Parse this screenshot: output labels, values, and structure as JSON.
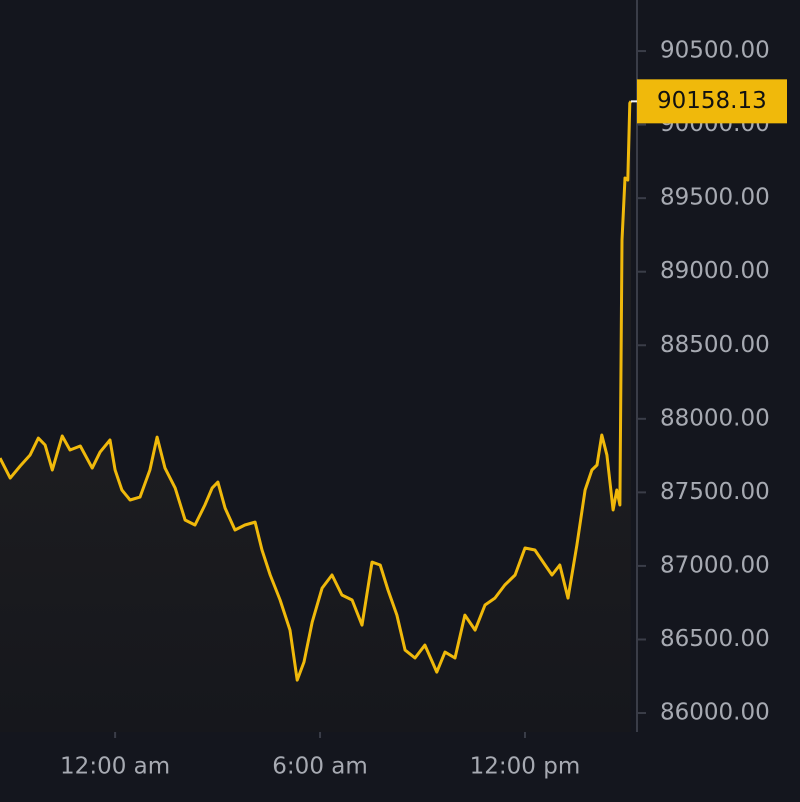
{
  "chart_data": {
    "type": "line",
    "series": [
      {
        "color": "#f0b90b",
        "x": [
          -3.37,
          -3.07,
          -2.78,
          -2.49,
          -2.25,
          -2.05,
          -1.84,
          -1.55,
          -1.32,
          -1.02,
          -0.67,
          -0.44,
          -0.15,
          0,
          0.2,
          0.44,
          0.73,
          1.02,
          1.23,
          1.46,
          1.76,
          2.05,
          2.34,
          2.63,
          2.84,
          3.01,
          3.22,
          3.51,
          3.8,
          4.1,
          4.3,
          4.54,
          4.83,
          5.12,
          5.33,
          5.53,
          5.77,
          6.06,
          6.35,
          6.64,
          6.94,
          7.23,
          7.52,
          7.76,
          7.99,
          8.25,
          8.49,
          8.78,
          9.07,
          9.42,
          9.66,
          9.95,
          10.24,
          10.54,
          10.83,
          11.12,
          11.41,
          11.71,
          12.0,
          12.29,
          12.59,
          12.79,
          13.02,
          13.26,
          13.52,
          13.76,
          13.96,
          14.11,
          14.25,
          14.4,
          14.58,
          14.69,
          14.78,
          14.84,
          14.93,
          15.01,
          15.07,
          15.1
        ],
        "values": [
          87733,
          87597,
          87679,
          87754,
          87869,
          87822,
          87652,
          87883,
          87788,
          87815,
          87665,
          87774,
          87856,
          87652,
          87516,
          87448,
          87468,
          87652,
          87876,
          87665,
          87529,
          87312,
          87278,
          87414,
          87529,
          87570,
          87393,
          87244,
          87278,
          87298,
          87108,
          86938,
          86768,
          86564,
          86224,
          86347,
          86618,
          86849,
          86938,
          86802,
          86768,
          86598,
          87026,
          87006,
          86836,
          86666,
          86428,
          86374,
          86462,
          86278,
          86414,
          86374,
          86666,
          86564,
          86734,
          86781,
          86870,
          86938,
          87122,
          87108,
          87006,
          86938,
          87006,
          86781,
          87142,
          87516,
          87652,
          87686,
          87890,
          87754,
          87380,
          87516,
          87414,
          89215,
          89637,
          89623,
          90146,
          90158.13
        ]
      }
    ],
    "xlim": [
      -3.37,
      15.28
    ],
    "xticks": [
      {
        "value": 0,
        "label": "12:00 am"
      },
      {
        "value": 6,
        "label": "6:00 am"
      },
      {
        "value": 12,
        "label": "12:00 pm"
      }
    ],
    "ylim": [
      85871,
      90847
    ],
    "yticks": [
      {
        "value": 86000,
        "label": "86000.00"
      },
      {
        "value": 86500,
        "label": "86500.00"
      },
      {
        "value": 87000,
        "label": "87000.00"
      },
      {
        "value": 87500,
        "label": "87500.00"
      },
      {
        "value": 88000,
        "label": "88000.00"
      },
      {
        "value": 88500,
        "label": "88500.00"
      },
      {
        "value": 89000,
        "label": "89000.00"
      },
      {
        "value": 89500,
        "label": "89500.00"
      },
      {
        "value": 90000,
        "label": "90000.00"
      },
      {
        "value": 90500,
        "label": "90500.00"
      }
    ]
  }
}
